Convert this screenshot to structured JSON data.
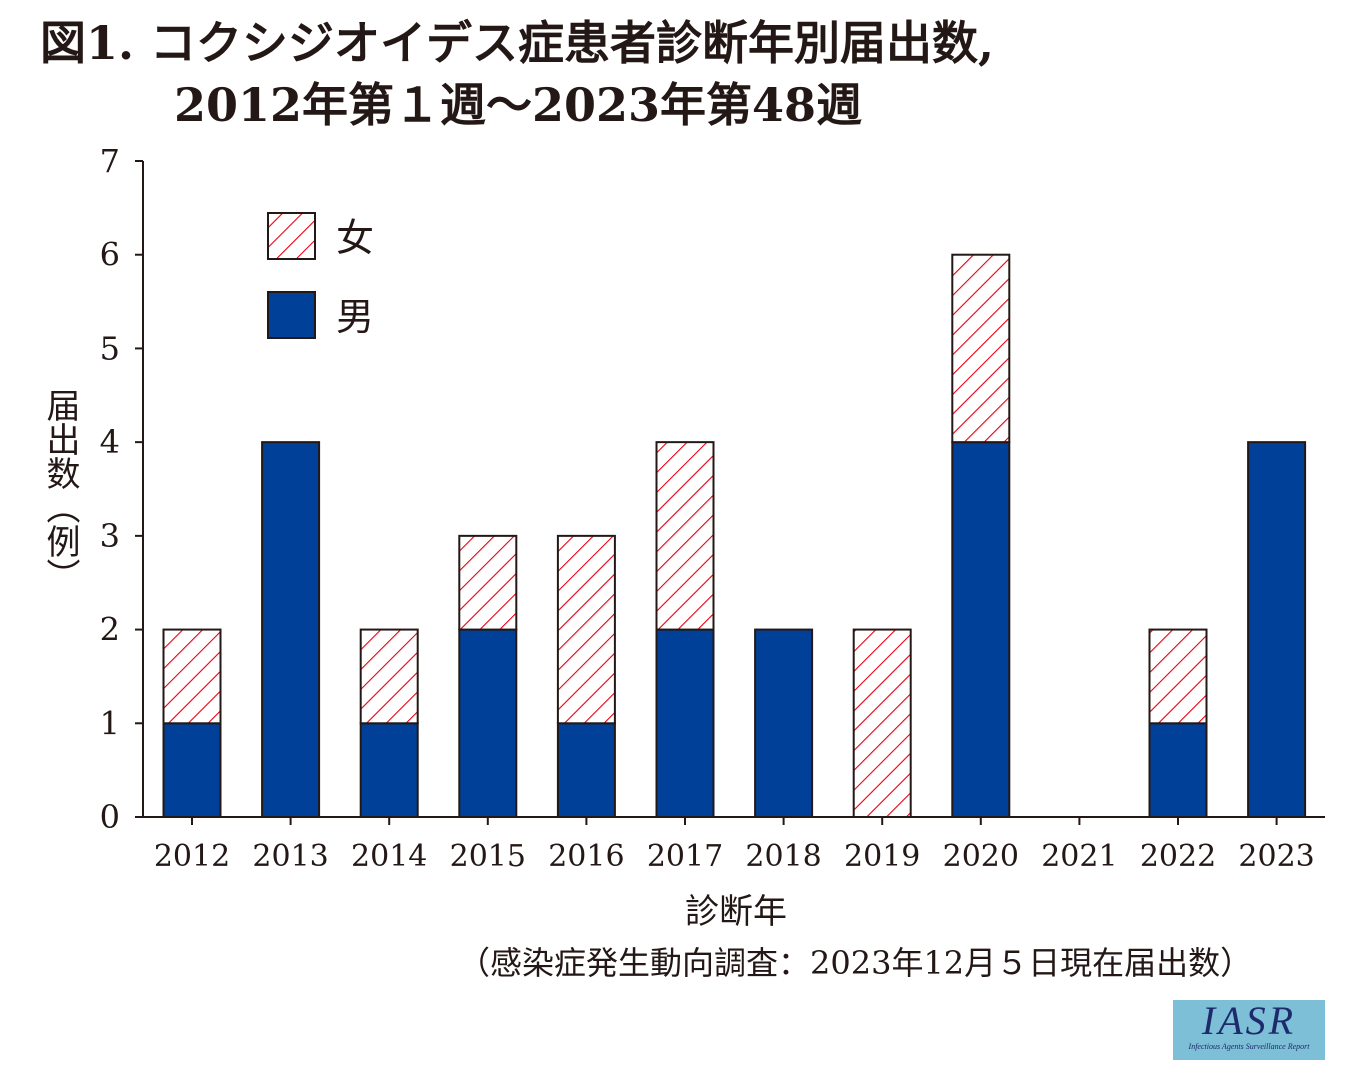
{
  "chart_data": {
    "type": "bar",
    "stacked": true,
    "title_line1": "図1. コクシジオイデス症患者診断年別届出数,",
    "title_line2": "2012年第１週〜2023年第48週",
    "categories": [
      "2012",
      "2013",
      "2014",
      "2015",
      "2016",
      "2017",
      "2018",
      "2019",
      "2020",
      "2021",
      "2022",
      "2023"
    ],
    "series": [
      {
        "name": "男",
        "values": [
          1,
          4,
          1,
          2,
          1,
          2,
          2,
          0,
          4,
          0,
          1,
          4
        ],
        "color": "#004098",
        "pattern": "solid"
      },
      {
        "name": "女",
        "values": [
          1,
          0,
          1,
          1,
          2,
          2,
          0,
          2,
          2,
          0,
          1,
          0
        ],
        "color": "#e60012",
        "pattern": "hatch"
      }
    ],
    "xlabel": "診断年",
    "ylabel": "届出数（例）",
    "ylim": [
      0,
      7
    ],
    "yticks": [
      "0",
      "1",
      "2",
      "3",
      "4",
      "5",
      "6",
      "7"
    ],
    "legend_position": "top-left",
    "grid": false
  },
  "source": "（感染症発生動向調査：2023年12月５日現在届出数）",
  "logo": {
    "main": "IASR",
    "sub": "Infectious Agents Surveillance Report"
  }
}
